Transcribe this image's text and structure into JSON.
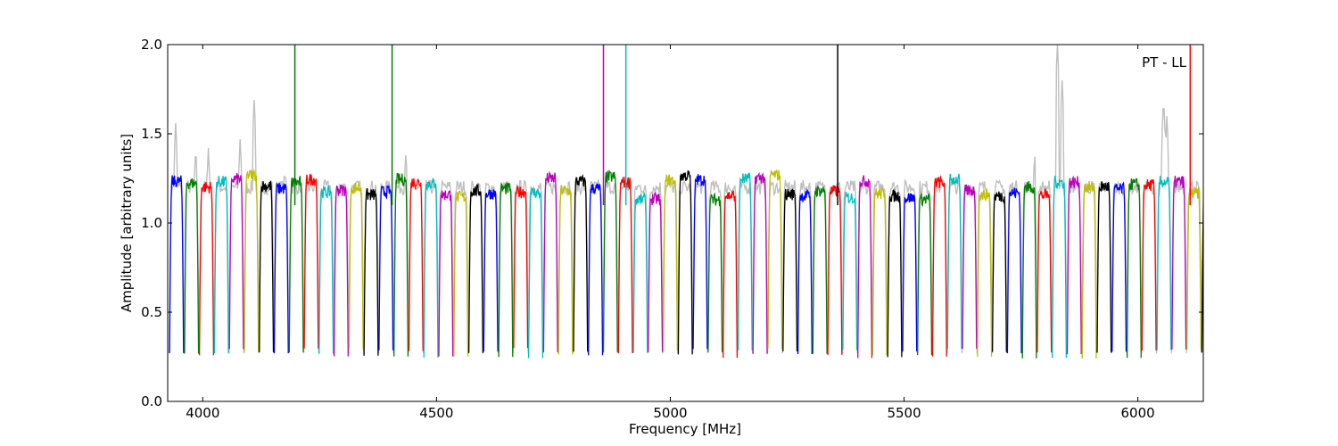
{
  "chart_data": {
    "type": "line",
    "title": "",
    "annotation": "PT - LL",
    "xlabel": "Frequency [MHz]",
    "ylabel": "Amplitude [arbitrary units]",
    "xlim": [
      3925,
      6140
    ],
    "ylim": [
      0.0,
      2.0
    ],
    "xticks": [
      4000,
      4500,
      5000,
      5500,
      6000
    ],
    "yticks": [
      0.0,
      0.5,
      1.0,
      1.5,
      2.0
    ],
    "xtick_labels": [
      "4000",
      "4500",
      "5000",
      "5500",
      "6000"
    ],
    "ytick_labels": [
      "0.0",
      "0.5",
      "1.0",
      "1.5",
      "2.0"
    ],
    "grid": false,
    "legend": "none",
    "channel_start": 3928,
    "channel_width": 32,
    "plateau_level": 1.2,
    "rolloff_level": 0.27,
    "background_series": {
      "name": "",
      "color": "#bfbfbf",
      "description": "unflagged spectrum drawn in grey beneath the coloured channels",
      "peaks": [
        [
          3942,
          1.56
        ],
        [
          3985,
          1.43
        ],
        [
          4012,
          1.42
        ],
        [
          4080,
          1.47
        ],
        [
          4110,
          1.69
        ],
        [
          4150,
          1.41
        ],
        [
          4175,
          1.32
        ],
        [
          4435,
          1.44
        ],
        [
          5780,
          1.44
        ],
        [
          5828,
          2.0
        ],
        [
          5838,
          1.8
        ],
        [
          6055,
          1.7
        ],
        [
          6062,
          1.6
        ]
      ]
    },
    "series_colors": [
      "#0000ff",
      "#007f00",
      "#ff0000",
      "#00bfbf",
      "#bf00bf",
      "#bfbf00",
      "#000000"
    ],
    "spikes": [
      {
        "x": 4197,
        "y": 2.0,
        "color": "#007f00"
      },
      {
        "x": 4405,
        "y": 2.0,
        "color": "#007f00"
      },
      {
        "x": 4857,
        "y": 2.0,
        "color": "#bf00bf"
      },
      {
        "x": 4905,
        "y": 2.0,
        "color": "#00bfbf"
      },
      {
        "x": 5358,
        "y": 2.0,
        "color": "#000000"
      },
      {
        "x": 6112,
        "y": 2.0,
        "color": "#ff0000"
      }
    ]
  }
}
